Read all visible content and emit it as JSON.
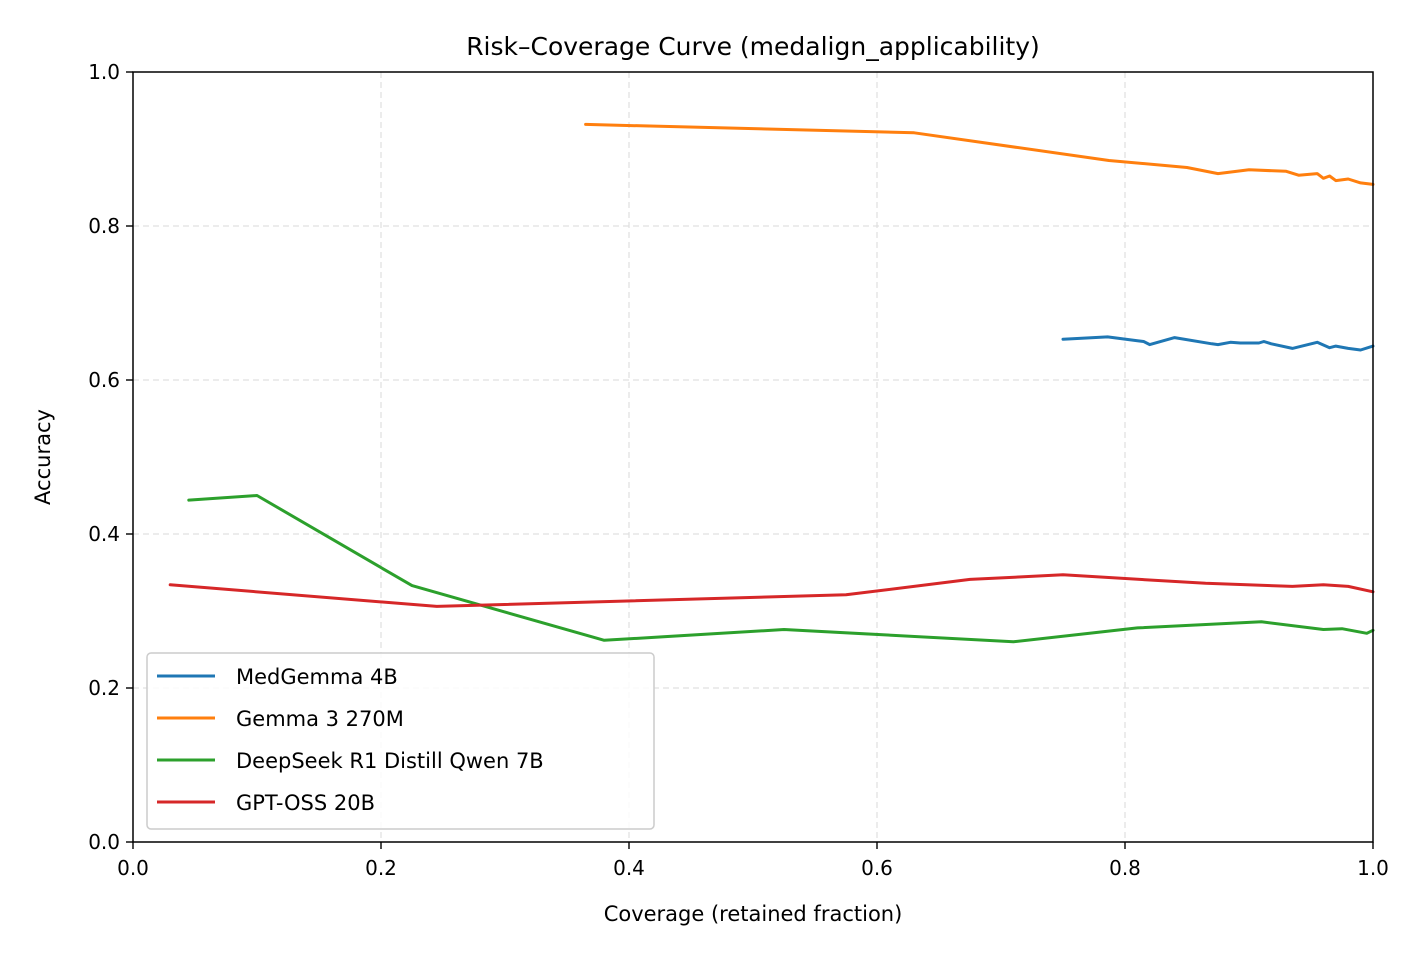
{
  "chart_data": {
    "type": "line",
    "title": "Risk–Coverage Curve (medalign_applicability)",
    "xlabel": "Coverage (retained fraction)",
    "ylabel": "Accuracy",
    "xlim": [
      0.0,
      1.0
    ],
    "ylim": [
      0.0,
      1.0
    ],
    "xticks": [
      "0.0",
      "0.2",
      "0.4",
      "0.6",
      "0.8",
      "1.0"
    ],
    "yticks": [
      "0.0",
      "0.2",
      "0.4",
      "0.6",
      "0.8",
      "1.0"
    ],
    "grid": true,
    "legend_position": "lower-left",
    "series": [
      {
        "name": "MedGemma 4B",
        "color": "#1f77b4",
        "x": [
          0.75,
          0.786,
          0.81,
          0.815,
          0.82,
          0.84,
          0.87,
          0.875,
          0.885,
          0.893,
          0.908,
          0.912,
          0.918,
          0.935,
          0.955,
          0.965,
          0.97,
          0.98,
          0.99,
          1.0
        ],
        "y": [
          0.653,
          0.656,
          0.651,
          0.65,
          0.646,
          0.655,
          0.647,
          0.646,
          0.649,
          0.648,
          0.648,
          0.65,
          0.647,
          0.641,
          0.649,
          0.642,
          0.644,
          0.641,
          0.639,
          0.644
        ]
      },
      {
        "name": "Gemma 3 270M",
        "color": "#ff7f0e",
        "x": [
          0.365,
          0.63,
          0.787,
          0.85,
          0.875,
          0.9,
          0.93,
          0.94,
          0.955,
          0.96,
          0.965,
          0.97,
          0.98,
          0.99,
          1.0
        ],
        "y": [
          0.932,
          0.921,
          0.885,
          0.876,
          0.868,
          0.873,
          0.871,
          0.866,
          0.868,
          0.862,
          0.865,
          0.859,
          0.861,
          0.856,
          0.854
        ]
      },
      {
        "name": "DeepSeek R1 Distill Qwen 7B",
        "color": "#2ca02c",
        "x": [
          0.045,
          0.1,
          0.225,
          0.38,
          0.525,
          0.71,
          0.81,
          0.91,
          0.96,
          0.975,
          0.995,
          1.0
        ],
        "y": [
          0.444,
          0.45,
          0.333,
          0.262,
          0.276,
          0.26,
          0.278,
          0.286,
          0.276,
          0.277,
          0.271,
          0.275
        ]
      },
      {
        "name": "GPT-OSS 20B",
        "color": "#d62728",
        "x": [
          0.03,
          0.245,
          0.575,
          0.675,
          0.75,
          0.865,
          0.935,
          0.96,
          0.98,
          1.0
        ],
        "y": [
          0.334,
          0.306,
          0.321,
          0.341,
          0.347,
          0.336,
          0.332,
          0.334,
          0.332,
          0.325
        ]
      }
    ]
  }
}
